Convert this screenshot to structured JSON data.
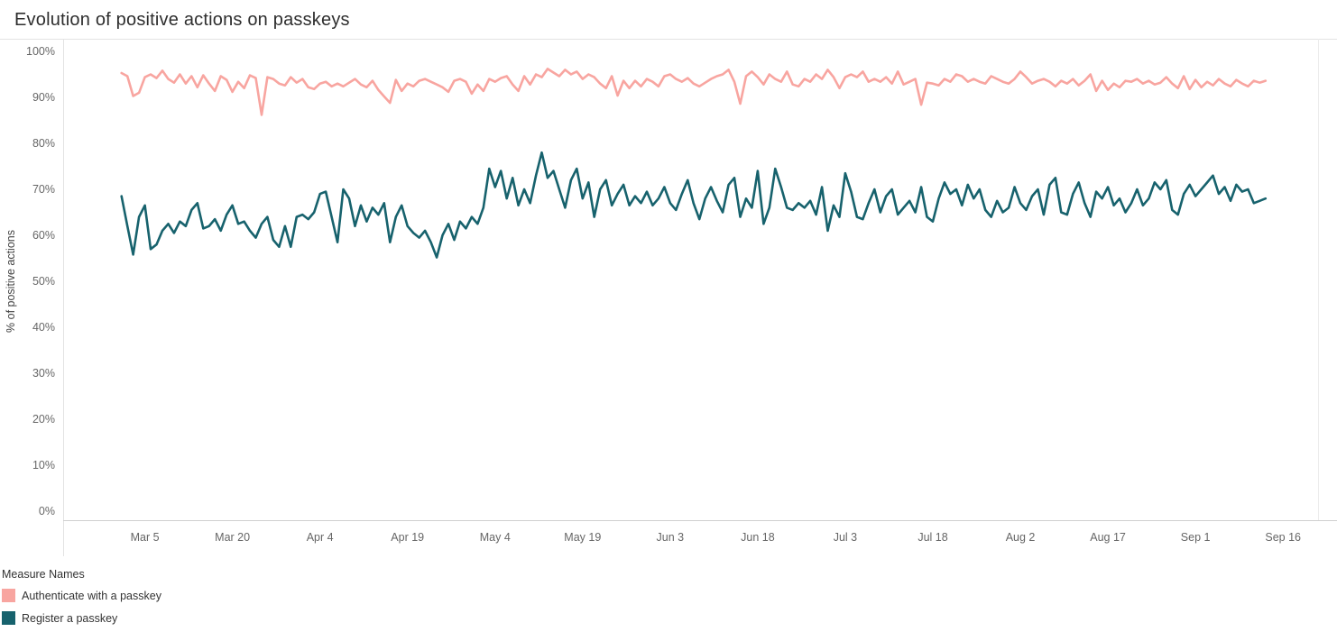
{
  "chart_data": {
    "type": "line",
    "title": "Evolution of positive actions on passkeys",
    "xlabel": "",
    "ylabel": "% of positive actions",
    "ylim": [
      0,
      100
    ],
    "grid": false,
    "legend_title": "Measure Names",
    "legend_position": "bottom-left",
    "x_domain_days": [
      -10,
      205
    ],
    "start_day": 0,
    "x_unit": "day (day 0 = Mar 1)",
    "y_ticks": [
      {
        "label": "0%",
        "value": 0
      },
      {
        "label": "10%",
        "value": 10
      },
      {
        "label": "20%",
        "value": 20
      },
      {
        "label": "30%",
        "value": 30
      },
      {
        "label": "40%",
        "value": 40
      },
      {
        "label": "50%",
        "value": 50
      },
      {
        "label": "60%",
        "value": 60
      },
      {
        "label": "70%",
        "value": 70
      },
      {
        "label": "80%",
        "value": 80
      },
      {
        "label": "90%",
        "value": 90
      },
      {
        "label": "100%",
        "value": 100
      }
    ],
    "x_ticks": [
      {
        "label": "Mar 5",
        "day": 4
      },
      {
        "label": "Mar 20",
        "day": 19
      },
      {
        "label": "Apr 4",
        "day": 34
      },
      {
        "label": "Apr 19",
        "day": 49
      },
      {
        "label": "May 4",
        "day": 64
      },
      {
        "label": "May 19",
        "day": 79
      },
      {
        "label": "Jun 3",
        "day": 94
      },
      {
        "label": "Jun 18",
        "day": 109
      },
      {
        "label": "Jul 3",
        "day": 124
      },
      {
        "label": "Jul 18",
        "day": 139
      },
      {
        "label": "Aug 2",
        "day": 154
      },
      {
        "label": "Aug 17",
        "day": 169
      },
      {
        "label": "Sep 1",
        "day": 184
      },
      {
        "label": "Sep 16",
        "day": 199
      }
    ],
    "series": [
      {
        "name": "Authenticate with a passkey",
        "color": "#f8a5a0",
        "values": [
          95.3,
          94.6,
          90.3,
          91.0,
          94.4,
          95.0,
          94.2,
          95.8,
          94.0,
          93.2,
          95.0,
          93.0,
          94.6,
          92.2,
          94.8,
          93.0,
          91.4,
          94.6,
          93.8,
          91.2,
          93.4,
          92.0,
          94.8,
          94.2,
          86.2,
          94.4,
          94.0,
          93.0,
          92.6,
          94.4,
          93.2,
          94.0,
          92.2,
          91.8,
          93.0,
          93.4,
          92.4,
          93.0,
          92.4,
          93.2,
          94.0,
          92.8,
          92.2,
          93.6,
          91.6,
          90.2,
          88.8,
          93.8,
          91.4,
          93.0,
          92.4,
          93.6,
          94.0,
          93.4,
          92.8,
          92.2,
          91.2,
          93.6,
          94.0,
          93.4,
          90.8,
          92.8,
          91.4,
          94.0,
          93.4,
          94.2,
          94.6,
          92.8,
          91.4,
          94.6,
          92.8,
          95.0,
          94.4,
          96.2,
          95.4,
          94.6,
          96.0,
          95.0,
          95.6,
          94.0,
          95.0,
          94.4,
          93.0,
          92.0,
          94.6,
          90.4,
          93.6,
          92.0,
          93.6,
          92.4,
          94.0,
          93.4,
          92.4,
          94.6,
          95.0,
          94.0,
          93.4,
          94.2,
          93.0,
          92.4,
          93.2,
          94.0,
          94.6,
          95.0,
          96.0,
          93.4,
          88.6,
          94.6,
          95.6,
          94.4,
          92.8,
          95.0,
          94.0,
          93.4,
          95.6,
          92.8,
          92.4,
          94.0,
          93.4,
          95.0,
          94.0,
          96.0,
          94.4,
          92.0,
          94.4,
          95.0,
          94.4,
          95.6,
          93.4,
          94.0,
          93.4,
          94.4,
          93.0,
          95.6,
          92.8,
          93.4,
          94.0,
          88.4,
          93.2,
          93.0,
          92.6,
          94.0,
          93.4,
          95.0,
          94.6,
          93.4,
          94.0,
          93.4,
          93.0,
          94.6,
          94.0,
          93.4,
          93.0,
          94.0,
          95.6,
          94.4,
          93.0,
          93.6,
          94.0,
          93.4,
          92.4,
          93.6,
          93.0,
          94.0,
          92.6,
          93.6,
          95.0,
          91.4,
          93.6,
          91.6,
          93.0,
          92.2,
          93.6,
          93.4,
          94.0,
          93.0,
          93.6,
          92.8,
          93.2,
          94.4,
          93.0,
          92.0,
          94.6,
          91.8,
          93.8,
          92.2,
          93.4,
          92.6,
          94.0,
          93.0,
          92.4,
          93.8,
          93.0,
          92.4,
          93.6,
          93.2,
          93.6
        ]
      },
      {
        "name": "Register a passkey",
        "color": "#17626d",
        "values": [
          68.5,
          62.0,
          55.8,
          64.0,
          66.5,
          57.0,
          58.0,
          61.0,
          62.5,
          60.5,
          63.0,
          62.0,
          65.5,
          67.0,
          61.5,
          62.0,
          63.5,
          61.0,
          64.5,
          66.5,
          62.5,
          63.0,
          61.0,
          59.5,
          62.5,
          64.0,
          59.0,
          57.5,
          62.0,
          57.5,
          64.0,
          64.5,
          63.5,
          65.0,
          69.0,
          69.5,
          64.0,
          58.5,
          70.0,
          68.0,
          62.0,
          66.5,
          63.0,
          66.0,
          64.5,
          67.0,
          58.5,
          64.0,
          66.5,
          62.0,
          60.5,
          59.5,
          61.0,
          58.5,
          55.2,
          60.0,
          62.5,
          59.0,
          63.0,
          61.5,
          64.0,
          62.5,
          66.0,
          74.5,
          70.5,
          74.0,
          68.0,
          72.5,
          66.5,
          70.0,
          67.0,
          73.0,
          78.0,
          72.5,
          74.0,
          70.0,
          66.0,
          72.0,
          74.5,
          68.0,
          71.5,
          64.0,
          70.0,
          72.0,
          66.5,
          69.0,
          71.0,
          66.5,
          68.5,
          67.0,
          69.5,
          66.5,
          68.0,
          70.5,
          67.0,
          65.5,
          69.0,
          72.0,
          67.0,
          63.5,
          68.0,
          70.5,
          67.5,
          65.0,
          71.0,
          72.5,
          64.0,
          68.0,
          66.0,
          74.0,
          62.5,
          66.0,
          74.5,
          70.5,
          66.0,
          65.5,
          67.0,
          66.0,
          67.5,
          64.5,
          70.5,
          61.0,
          66.5,
          64.0,
          73.5,
          69.5,
          64.0,
          63.5,
          67.0,
          70.0,
          65.0,
          68.5,
          70.0,
          64.5,
          66.0,
          67.5,
          65.0,
          70.5,
          64.0,
          63.0,
          68.0,
          71.5,
          69.0,
          70.0,
          66.5,
          71.0,
          68.0,
          70.0,
          65.5,
          64.0,
          67.5,
          65.0,
          66.0,
          70.5,
          67.0,
          65.5,
          68.5,
          70.0,
          64.5,
          71.0,
          72.5,
          65.0,
          64.5,
          69.0,
          71.5,
          67.0,
          64.0,
          69.5,
          68.0,
          70.5,
          66.5,
          68.0,
          65.0,
          67.0,
          70.0,
          66.5,
          68.0,
          71.5,
          70.0,
          72.0,
          65.5,
          64.5,
          69.0,
          71.0,
          68.5,
          70.0,
          71.5,
          73.0,
          69.0,
          70.5,
          67.5,
          71.0,
          69.5,
          70.0,
          67.0,
          67.5,
          68.0
        ]
      }
    ]
  }
}
